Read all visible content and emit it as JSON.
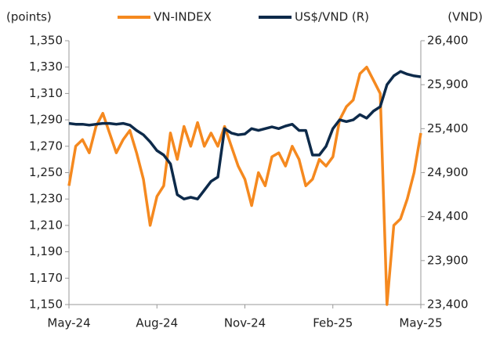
{
  "chart_data": {
    "type": "line",
    "y_label": "(points)",
    "y2_label": "(VND)",
    "categories": [
      "May-24",
      null,
      null,
      null,
      null,
      null,
      null,
      null,
      null,
      null,
      null,
      null,
      null,
      "Aug-24",
      null,
      null,
      null,
      null,
      null,
      null,
      null,
      null,
      null,
      null,
      null,
      null,
      "Nov-24",
      null,
      null,
      null,
      null,
      null,
      null,
      null,
      null,
      null,
      null,
      null,
      null,
      "Feb-25",
      null,
      null,
      null,
      null,
      null,
      null,
      null,
      null,
      null,
      null,
      null,
      null,
      "May-25"
    ],
    "series": [
      {
        "name": "VN-INDEX",
        "color": "#f5891f",
        "axis": "y",
        "values": [
          1240,
          1270,
          1275,
          1265,
          1285,
          1295,
          1280,
          1265,
          1275,
          1282,
          1265,
          1245,
          1210,
          1232,
          1240,
          1280,
          1260,
          1285,
          1270,
          1288,
          1270,
          1280,
          1270,
          1285,
          1270,
          1255,
          1245,
          1225,
          1250,
          1240,
          1262,
          1265,
          1255,
          1270,
          1260,
          1240,
          1245,
          1260,
          1255,
          1262,
          1290,
          1300,
          1305,
          1325,
          1330,
          1320,
          1310,
          1150,
          1210,
          1215,
          1230,
          1250,
          1280
        ]
      },
      {
        "name": "US$/VND (R)",
        "color": "#0d2a4a",
        "axis": "y2",
        "values": [
          25460,
          25450,
          25450,
          25440,
          25450,
          25460,
          25460,
          25450,
          25460,
          25440,
          25380,
          25330,
          25250,
          25150,
          25100,
          25000,
          24650,
          24600,
          24620,
          24600,
          24700,
          24800,
          24850,
          25400,
          25350,
          25330,
          25340,
          25400,
          25380,
          25400,
          25420,
          25400,
          25430,
          25450,
          25380,
          25380,
          25100,
          25100,
          25200,
          25400,
          25500,
          25480,
          25500,
          25560,
          25520,
          25600,
          25650,
          25900,
          26000,
          26050,
          26020,
          26000,
          25990
        ]
      }
    ],
    "ylim": [
      1150,
      1350
    ],
    "yticks": [
      {
        "value": 1150,
        "label": "1,150"
      },
      {
        "value": 1170,
        "label": "1,170"
      },
      {
        "value": 1190,
        "label": "1,190"
      },
      {
        "value": 1210,
        "label": "1,210"
      },
      {
        "value": 1230,
        "label": "1,230"
      },
      {
        "value": 1250,
        "label": "1,250"
      },
      {
        "value": 1270,
        "label": "1,270"
      },
      {
        "value": 1290,
        "label": "1,290"
      },
      {
        "value": 1310,
        "label": "1,310"
      },
      {
        "value": 1330,
        "label": "1,330"
      },
      {
        "value": 1350,
        "label": "1,350"
      }
    ],
    "y2lim": [
      23400,
      26400
    ],
    "y2ticks": [
      {
        "value": 23400,
        "label": "23,400"
      },
      {
        "value": 23900,
        "label": "23,900"
      },
      {
        "value": 24400,
        "label": "24,400"
      },
      {
        "value": 24900,
        "label": "24,900"
      },
      {
        "value": 25400,
        "label": "25,400"
      },
      {
        "value": 25900,
        "label": "25,900"
      },
      {
        "value": 26400,
        "label": "26,400"
      }
    ],
    "grid": false,
    "legend": "top"
  }
}
